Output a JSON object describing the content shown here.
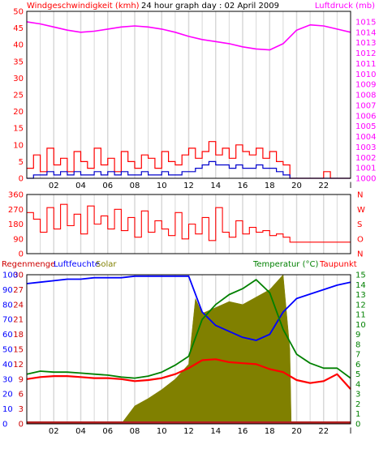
{
  "header": {
    "wind_title": "Windgeschwindigkeit (kmh)",
    "graph_title": "24 hour graph day : 02 April 2009",
    "pressure_title": "Luftdruck (mb)"
  },
  "legend": {
    "rain": "Regenmenge",
    "humidity": "Luftfeuchte",
    "solar": "Solar",
    "temperature": "Temperatur (°C)",
    "dewpoint": "Taupunkt"
  },
  "colors": {
    "wind_speed": "#ff0000",
    "wind_avg": "#0000cc",
    "pressure": "#ff00ff",
    "direction": "#ff0000",
    "humidity": "#0000ff",
    "solar": "#808000",
    "temperature": "#008000",
    "dewpoint": "#ff0000",
    "rain": "#b22222",
    "rain_label": "#cc0000",
    "gridline": "#d8d8d8"
  },
  "chart_data": [
    {
      "type": "line",
      "panel": "wind-pressure",
      "x_unit": "hour",
      "xlim": [
        0,
        24
      ],
      "x_tick_labels": [
        "02",
        "04",
        "06",
        "08",
        "10",
        "12",
        "14",
        "16",
        "18",
        "20",
        "22",
        "l"
      ],
      "left_axis": {
        "ylim": [
          0,
          50
        ],
        "ticks": [
          "0",
          "5",
          "10",
          "15",
          "20",
          "25",
          "30",
          "35",
          "40",
          "45",
          "50"
        ]
      },
      "right_axis": {
        "ylim": [
          1000,
          1016
        ],
        "ticks": [
          "1000",
          "1001",
          "1002",
          "1003",
          "1004",
          "1005",
          "1006",
          "1007",
          "1008",
          "1009",
          "1010",
          "1011",
          "1012",
          "1013",
          "1014",
          "1015"
        ]
      },
      "series": [
        {
          "key": "wind_speed",
          "axis": "left",
          "x": [
            0.0,
            0.5,
            1.0,
            1.5,
            2.0,
            2.5,
            3.0,
            3.5,
            4.0,
            4.5,
            5.0,
            5.5,
            6.0,
            6.5,
            7.0,
            7.5,
            8.0,
            8.5,
            9.0,
            9.5,
            10.0,
            10.5,
            11.0,
            11.5,
            12.0,
            12.5,
            13.0,
            13.5,
            14.0,
            14.5,
            15.0,
            15.5,
            16.0,
            16.5,
            17.0,
            17.5,
            18.0,
            18.5,
            19.0,
            19.5,
            20.0,
            20.5,
            21.0,
            21.5,
            22.0,
            22.5,
            23.0,
            23.5,
            24.0
          ],
          "y": [
            3,
            7,
            2,
            9,
            4,
            6,
            2,
            8,
            5,
            3,
            9,
            4,
            6,
            2,
            8,
            5,
            3,
            7,
            6,
            3,
            8,
            5,
            4,
            7,
            9,
            6,
            8,
            11,
            7,
            9,
            6,
            10,
            8,
            7,
            9,
            6,
            8,
            5,
            4,
            0,
            0,
            0,
            0,
            0,
            2,
            0,
            0,
            0,
            0
          ]
        },
        {
          "key": "wind_avg",
          "axis": "left",
          "x": [
            0.0,
            0.5,
            1.0,
            1.5,
            2.0,
            2.5,
            3.0,
            3.5,
            4.0,
            4.5,
            5.0,
            5.5,
            6.0,
            6.5,
            7.0,
            7.5,
            8.0,
            8.5,
            9.0,
            9.5,
            10.0,
            10.5,
            11.0,
            11.5,
            12.0,
            12.5,
            13.0,
            13.5,
            14.0,
            14.5,
            15.0,
            15.5,
            16.0,
            16.5,
            17.0,
            17.5,
            18.0,
            18.5,
            19.0,
            19.5,
            20.0,
            20.5,
            21.0,
            21.5,
            22.0,
            22.5,
            23.0,
            23.5,
            24.0
          ],
          "y": [
            0,
            1,
            1,
            2,
            1,
            2,
            1,
            2,
            1,
            1,
            2,
            1,
            2,
            1,
            2,
            1,
            1,
            2,
            1,
            1,
            2,
            1,
            1,
            2,
            2,
            3,
            4,
            5,
            4,
            4,
            3,
            4,
            3,
            3,
            4,
            3,
            3,
            2,
            1,
            0,
            0,
            0,
            0,
            0,
            0,
            0,
            0,
            0,
            0
          ]
        },
        {
          "key": "pressure",
          "axis": "right",
          "x": [
            0,
            1,
            2,
            3,
            4,
            5,
            6,
            7,
            8,
            9,
            10,
            11,
            12,
            13,
            14,
            15,
            16,
            17,
            18,
            19,
            20,
            21,
            22,
            23,
            24
          ],
          "y": [
            1015.0,
            1014.8,
            1014.5,
            1014.2,
            1014.0,
            1014.1,
            1014.3,
            1014.5,
            1014.6,
            1014.5,
            1014.3,
            1014.0,
            1013.6,
            1013.3,
            1013.1,
            1012.9,
            1012.6,
            1012.4,
            1012.3,
            1012.9,
            1014.2,
            1014.7,
            1014.6,
            1014.3,
            1014.0
          ]
        }
      ]
    },
    {
      "type": "line",
      "panel": "wind-direction",
      "x_unit": "hour",
      "xlim": [
        0,
        24
      ],
      "left_axis": {
        "ylim": [
          0,
          360
        ],
        "ticks": [
          "0",
          "90",
          "180",
          "270",
          "360"
        ]
      },
      "right_axis_labels": [
        "N",
        "O",
        "S",
        "W",
        "N"
      ],
      "series": [
        {
          "key": "direction",
          "axis": "left",
          "x": [
            0.0,
            0.5,
            1.0,
            1.5,
            2.0,
            2.5,
            3.0,
            3.5,
            4.0,
            4.5,
            5.0,
            5.5,
            6.0,
            6.5,
            7.0,
            7.5,
            8.0,
            8.5,
            9.0,
            9.5,
            10.0,
            10.5,
            11.0,
            11.5,
            12.0,
            12.5,
            13.0,
            13.5,
            14.0,
            14.5,
            15.0,
            15.5,
            16.0,
            16.5,
            17.0,
            17.5,
            18.0,
            18.5,
            19.0,
            19.5,
            20.0,
            20.5,
            21.0,
            21.5,
            22.0,
            22.5,
            23.0,
            23.5,
            24.0
          ],
          "y": [
            250,
            210,
            130,
            280,
            150,
            300,
            170,
            240,
            120,
            290,
            180,
            230,
            150,
            270,
            140,
            220,
            100,
            260,
            130,
            200,
            150,
            110,
            250,
            90,
            180,
            120,
            220,
            80,
            280,
            130,
            100,
            200,
            120,
            160,
            130,
            140,
            110,
            120,
            100,
            70,
            70,
            70,
            70,
            70,
            70,
            70,
            70,
            70,
            70
          ]
        }
      ]
    },
    {
      "type": "line",
      "panel": "humidity-temperature",
      "x_unit": "hour",
      "xlim": [
        0,
        24
      ],
      "left_axis": {
        "ylim": [
          0,
          30
        ],
        "ticks": [
          "0",
          "3",
          "6",
          "9",
          "12",
          "15",
          "18",
          "21",
          "24",
          "27",
          "30"
        ]
      },
      "left_axis_humidity": {
        "ylim": [
          0,
          100
        ],
        "ticks": [
          "0",
          "10",
          "20",
          "30",
          "40",
          "50",
          "60",
          "70",
          "80",
          "90",
          "100"
        ]
      },
      "left_axis_solar": {
        "ylim": [
          0,
          1000
        ]
      },
      "right_axis": {
        "ylim": [
          0,
          15
        ],
        "ticks": [
          "0",
          "1",
          "2",
          "3",
          "4",
          "5",
          "6",
          "7",
          "8",
          "9",
          "10",
          "11",
          "12",
          "13",
          "14",
          "15"
        ]
      },
      "series": [
        {
          "key": "humidity",
          "axis": "humidity",
          "x": [
            0,
            1,
            2,
            3,
            4,
            5,
            6,
            7,
            8,
            9,
            10,
            11,
            12,
            13,
            14,
            15,
            16,
            17,
            18,
            19,
            20,
            21,
            22,
            23,
            24
          ],
          "y": [
            94,
            95,
            96,
            97,
            97,
            98,
            98,
            98,
            99,
            99,
            99,
            99,
            99,
            75,
            66,
            62,
            58,
            56,
            60,
            75,
            84,
            87,
            90,
            93,
            95
          ]
        },
        {
          "key": "solar",
          "axis": "solar",
          "style": "area",
          "x": [
            0,
            7.0,
            7.5,
            8,
            9,
            10,
            11,
            12,
            12.5,
            13,
            14,
            15,
            16,
            17,
            18,
            19,
            19.5,
            19.6,
            24
          ],
          "y": [
            0,
            0,
            60,
            120,
            170,
            230,
            300,
            400,
            840,
            740,
            780,
            820,
            800,
            850,
            900,
            1000,
            500,
            0,
            0
          ]
        },
        {
          "key": "temperature",
          "axis": "right",
          "x": [
            0,
            1,
            2,
            3,
            4,
            5,
            6,
            7,
            8,
            9,
            10,
            11,
            12,
            13,
            14,
            15,
            16,
            17,
            18,
            19,
            20,
            21,
            22,
            23,
            24
          ],
          "y": [
            5.0,
            5.3,
            5.2,
            5.2,
            5.1,
            5.0,
            4.9,
            4.7,
            4.6,
            4.8,
            5.2,
            5.9,
            6.8,
            10.5,
            12.0,
            13.0,
            13.6,
            14.5,
            13.2,
            9.5,
            7.0,
            6.1,
            5.6,
            5.6,
            4.6
          ]
        },
        {
          "key": "dewpoint",
          "axis": "right",
          "x": [
            0,
            1,
            2,
            3,
            4,
            5,
            6,
            7,
            8,
            9,
            10,
            11,
            12,
            13,
            14,
            15,
            16,
            17,
            18,
            19,
            20,
            21,
            22,
            23,
            24
          ],
          "y": [
            4.5,
            4.7,
            4.8,
            4.8,
            4.7,
            4.6,
            4.6,
            4.5,
            4.3,
            4.4,
            4.6,
            5.0,
            5.6,
            6.4,
            6.5,
            6.2,
            6.1,
            6.0,
            5.5,
            5.2,
            4.4,
            4.1,
            4.3,
            5.0,
            3.5
          ]
        },
        {
          "key": "rain",
          "axis": "left",
          "x": [
            0,
            24
          ],
          "y": [
            0,
            0
          ]
        }
      ]
    }
  ]
}
